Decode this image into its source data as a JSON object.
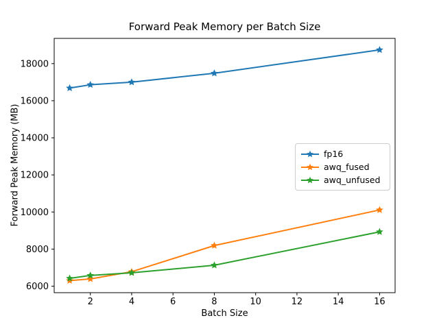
{
  "chart_data": {
    "type": "line",
    "title": "Forward Peak Memory per Batch Size",
    "xlabel": "Batch Size",
    "ylabel": "Forward Peak Memory (MB)",
    "x": [
      1,
      2,
      4,
      8,
      16
    ],
    "series": [
      {
        "name": "fp16",
        "color": "#1f77b4",
        "values": [
          16680,
          16860,
          17000,
          17480,
          18740
        ]
      },
      {
        "name": "awq_fused",
        "color": "#ff7f0e",
        "values": [
          6300,
          6390,
          6780,
          8190,
          10110
        ]
      },
      {
        "name": "awq_unfused",
        "color": "#2ca02c",
        "values": [
          6420,
          6580,
          6720,
          7130,
          8930
        ]
      }
    ],
    "marker": "star",
    "xlim": [
      0.25,
      16.75
    ],
    "ylim": [
      5650,
      19360
    ],
    "xticks": [
      2,
      4,
      6,
      8,
      10,
      12,
      14,
      16
    ],
    "yticks": [
      6000,
      8000,
      10000,
      12000,
      14000,
      16000,
      18000
    ],
    "grid": false,
    "legend_position": "center-right",
    "background_color": "#ffffff",
    "spine_color": "#000000",
    "text_color": "#000000"
  }
}
